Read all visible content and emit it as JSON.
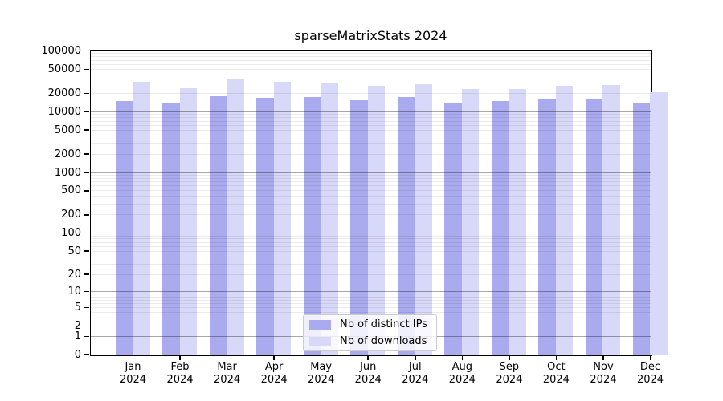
{
  "chart_data": {
    "type": "bar",
    "title": "sparseMatrixStats 2024",
    "categories": [
      "Jan 2024",
      "Feb 2024",
      "Mar 2024",
      "Apr 2024",
      "May 2024",
      "Jun 2024",
      "Jul 2024",
      "Aug 2024",
      "Sep 2024",
      "Oct 2024",
      "Nov 2024",
      "Dec 2024"
    ],
    "series": [
      {
        "name": "Nb of distinct IPs",
        "color": "#aaaaee",
        "values": [
          15400,
          13800,
          18300,
          17400,
          17800,
          15700,
          17900,
          14400,
          15100,
          16400,
          16800,
          13700
        ]
      },
      {
        "name": "Nb of downloads",
        "color": "#d8d8f8",
        "values": [
          32000,
          25000,
          34100,
          32000,
          30900,
          26700,
          28800,
          24200,
          23700,
          27300,
          28200,
          21300
        ]
      }
    ],
    "xlabel": "",
    "ylabel": "",
    "yscale": "log1p",
    "ylim": [
      0,
      100000
    ],
    "yticks": [
      100000,
      50000,
      20000,
      10000,
      5000,
      2000,
      1000,
      500,
      200,
      100,
      50,
      20,
      10,
      5,
      2,
      1,
      0
    ],
    "major_decade_gridlines": [
      1,
      10,
      100,
      1000,
      10000
    ],
    "grid": true,
    "legend_position": "lower center",
    "axis_color": "#000000",
    "background_color": "#ffffff"
  }
}
